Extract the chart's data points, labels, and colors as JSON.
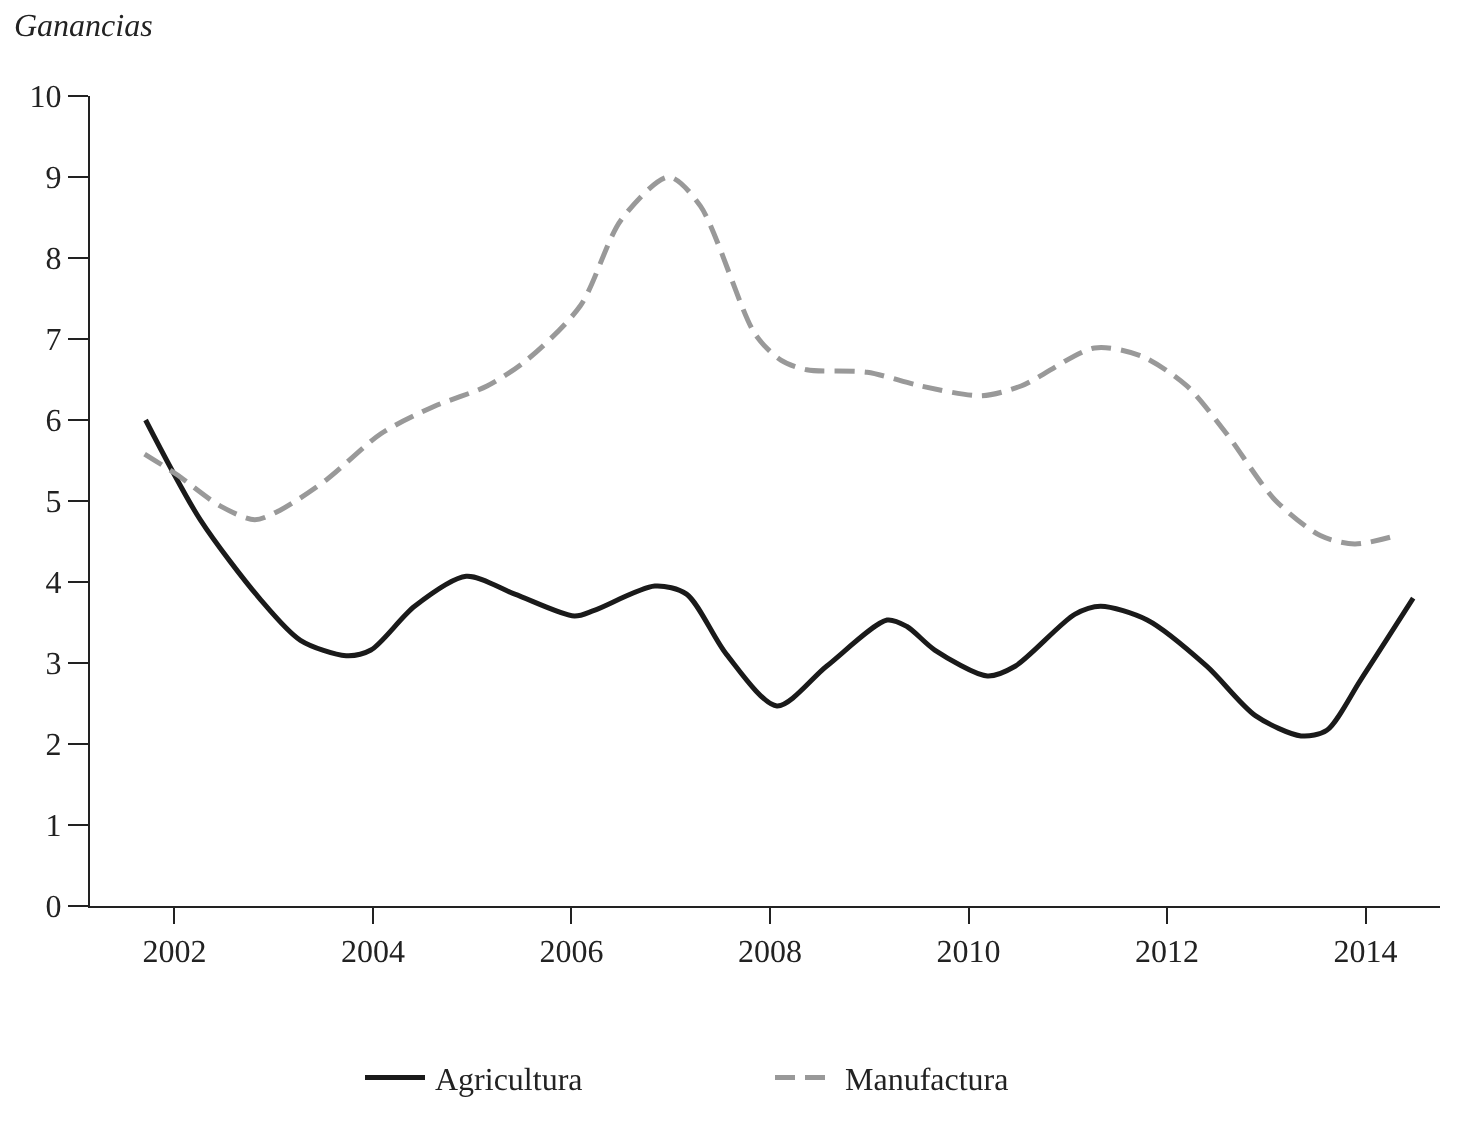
{
  "chart_data": {
    "type": "line",
    "ylabel": "Ganancias",
    "xlim": [
      2001.15,
      2014.75
    ],
    "xticks": [
      2002,
      2004,
      2006,
      2008,
      2010,
      2012,
      2014
    ],
    "ylim": [
      0,
      10
    ],
    "yticks": [
      0,
      1,
      2,
      3,
      4,
      5,
      6,
      7,
      8,
      9,
      10
    ],
    "grid": false,
    "legend": "bottom",
    "marker": "none",
    "series": [
      {
        "name": "Agricultura",
        "color": "#1a1a1a",
        "line_style": "solid",
        "x": [
          2001.71,
          2002.26,
          2002.87,
          2003.27,
          2003.73,
          2003.98,
          2004.42,
          2004.94,
          2005.43,
          2006.03,
          2006.23,
          2006.84,
          2007.16,
          2007.56,
          2008.07,
          2008.57,
          2009.18,
          2009.38,
          2009.66,
          2010.19,
          2010.47,
          2011.07,
          2011.33,
          2011.8,
          2012.4,
          2012.89,
          2013.35,
          2013.61,
          2013.95,
          2014.48
        ],
        "values": [
          6.0,
          4.77,
          3.78,
          3.28,
          3.09,
          3.16,
          3.7,
          4.07,
          3.85,
          3.58,
          3.65,
          3.95,
          3.85,
          3.11,
          2.47,
          2.96,
          3.53,
          3.45,
          3.16,
          2.84,
          2.96,
          3.6,
          3.7,
          3.53,
          2.96,
          2.35,
          2.1,
          2.17,
          2.79,
          3.8
        ]
      },
      {
        "name": "Manufactura",
        "color": "#999999",
        "line_style": "dashed",
        "x": [
          2001.7,
          2002.02,
          2002.46,
          2002.81,
          2003.07,
          2003.53,
          2004.08,
          2004.62,
          2005.15,
          2005.55,
          2006.09,
          2006.5,
          2006.98,
          2007.3,
          2007.85,
          2008.11,
          2008.37,
          2008.98,
          2009.52,
          2010.13,
          2010.53,
          2011.27,
          2011.74,
          2012.2,
          2012.6,
          2013.09,
          2013.55,
          2013.89,
          2014.3
        ],
        "values": [
          5.58,
          5.33,
          4.94,
          4.77,
          4.89,
          5.26,
          5.83,
          6.17,
          6.42,
          6.74,
          7.41,
          8.47,
          9.0,
          8.64,
          7.06,
          6.74,
          6.62,
          6.59,
          6.42,
          6.3,
          6.42,
          6.89,
          6.79,
          6.42,
          5.83,
          5.01,
          4.57,
          4.47,
          4.57
        ]
      }
    ]
  }
}
